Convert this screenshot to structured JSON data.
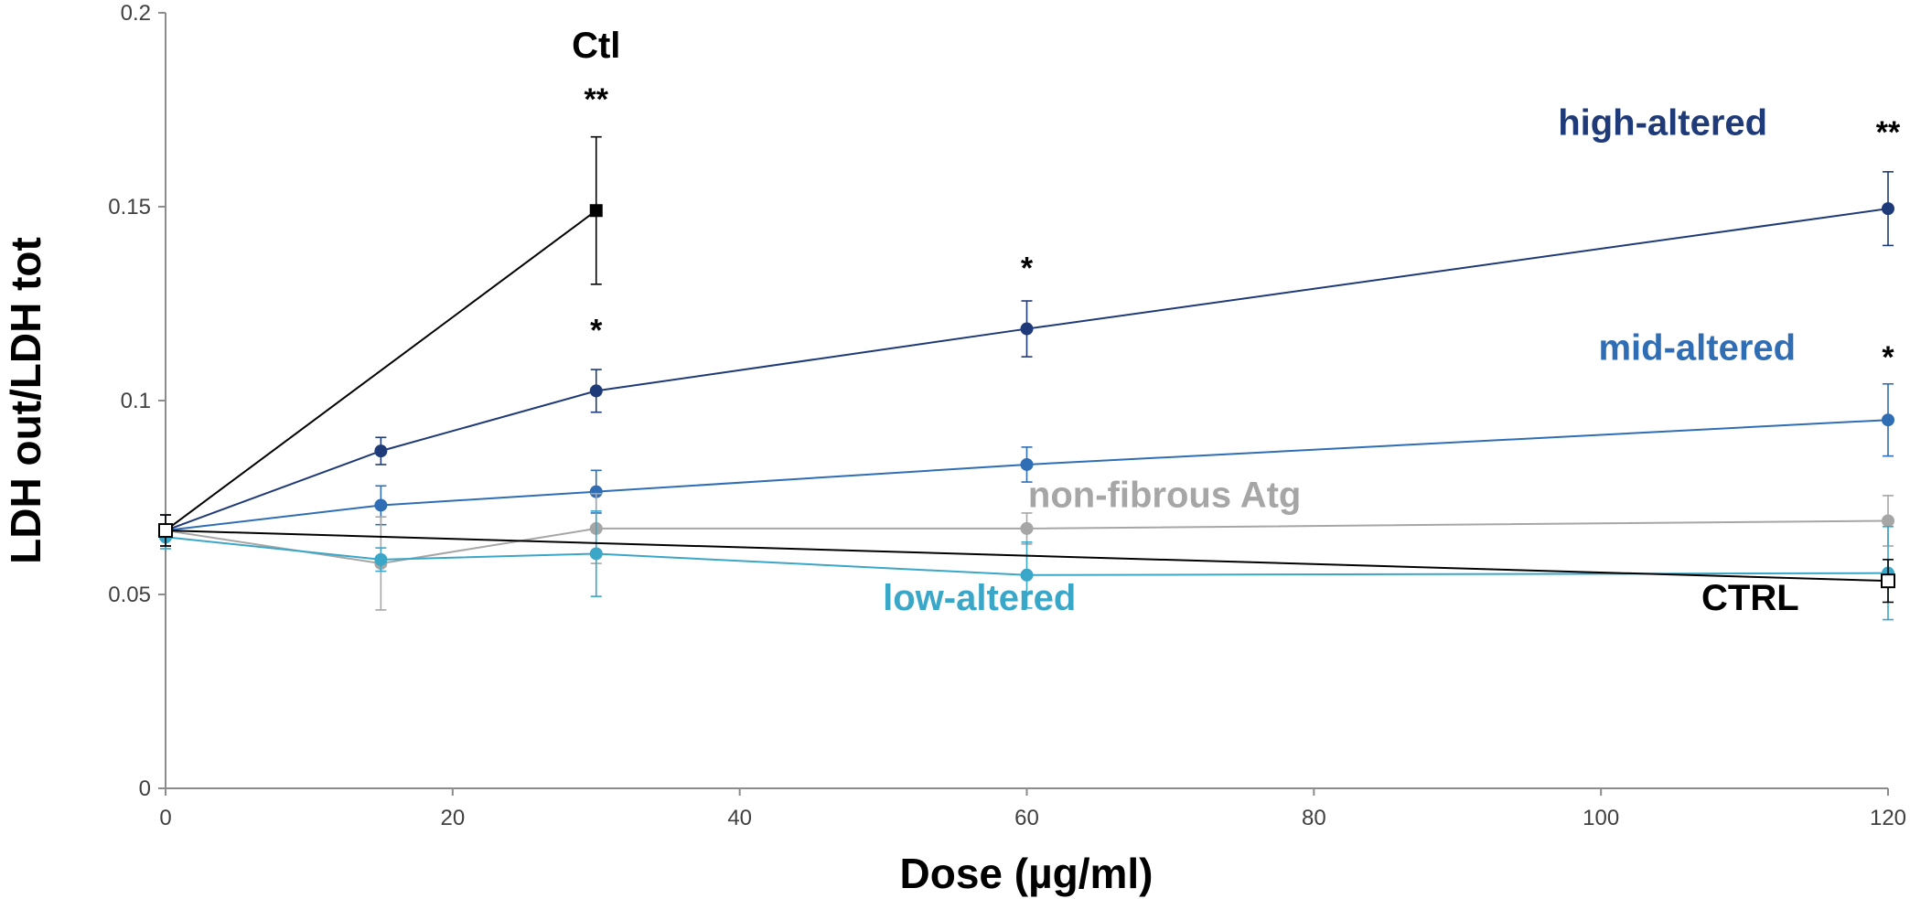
{
  "chart_data": {
    "type": "line",
    "title": "",
    "xlabel": "Dose (µg/ml)",
    "ylabel": "LDH out/LDH tot",
    "xlim": [
      0,
      120
    ],
    "ylim": [
      0,
      0.2
    ],
    "x_ticks": [
      0,
      20,
      40,
      60,
      80,
      100,
      120
    ],
    "x_tick_labels": [
      "0",
      "20",
      "40",
      "60",
      "80",
      "100",
      "120"
    ],
    "y_ticks": [
      0,
      0.05,
      0.1,
      0.15,
      0.2
    ],
    "y_tick_labels": [
      "0",
      "0.05",
      "0.1",
      "0.15",
      "0.2"
    ],
    "grid": false,
    "legend": "none (series labelled directly on plot)",
    "series": [
      {
        "name": "Ctl",
        "color": "#000000",
        "marker": "filled-square",
        "x": [
          0,
          30
        ],
        "y": [
          0.0665,
          0.149
        ],
        "err": [
          0.004,
          0.019
        ]
      },
      {
        "name": "high-altered",
        "color": "#1f3a78",
        "marker": "circle",
        "x": [
          0,
          15,
          30,
          60,
          120
        ],
        "y": [
          0.0665,
          0.087,
          0.1025,
          0.1185,
          0.1495
        ],
        "err": [
          0.004,
          0.0035,
          0.0055,
          0.0072,
          0.0095
        ]
      },
      {
        "name": "mid-altered",
        "color": "#2f6db5",
        "marker": "circle",
        "x": [
          0,
          15,
          30,
          60,
          120
        ],
        "y": [
          0.0665,
          0.073,
          0.0765,
          0.0835,
          0.095
        ],
        "err": [
          0.004,
          0.005,
          0.0055,
          0.0045,
          0.0093
        ]
      },
      {
        "name": "non-fibrous Atg",
        "color": "#a6a6a6",
        "marker": "circle",
        "x": [
          0,
          15,
          30,
          60,
          120
        ],
        "y": [
          0.0665,
          0.058,
          0.067,
          0.067,
          0.069
        ],
        "err": [
          0.004,
          0.012,
          0.009,
          0.004,
          0.0065
        ]
      },
      {
        "name": "low-altered",
        "color": "#3aa6c8",
        "marker": "circle",
        "x": [
          0,
          15,
          30,
          60,
          120
        ],
        "y": [
          0.0648,
          0.059,
          0.0605,
          0.055,
          0.0555
        ],
        "err": [
          0.003,
          0.003,
          0.011,
          0.0085,
          0.012
        ]
      },
      {
        "name": "CTRL",
        "color": "#000000",
        "marker": "open-square",
        "x": [
          0,
          120
        ],
        "y": [
          0.0665,
          0.0535
        ],
        "err": [
          0.004,
          0.0055
        ]
      }
    ],
    "series_labels": [
      {
        "text": "Ctl",
        "color": "#000000",
        "anchor": {
          "x": 30,
          "y": 0.1885
        }
      },
      {
        "text": "high-altered",
        "color": "#1f3a78",
        "anchor": {
          "x": 104.3,
          "y": 0.1685
        }
      },
      {
        "text": "mid-altered",
        "color": "#2f6db5",
        "anchor": {
          "x": 106.7,
          "y": 0.1105
        }
      },
      {
        "text": "non-fibrous Atg",
        "color": "#a6a6a6",
        "anchor": {
          "x": 69.6,
          "y": 0.0725
        }
      },
      {
        "text": "low-altered",
        "color": "#3aa6c8",
        "anchor": {
          "x": 56.7,
          "y": 0.046
        }
      },
      {
        "text": "CTRL",
        "color": "#000000",
        "anchor": {
          "x": 110.4,
          "y": 0.046
        }
      }
    ],
    "annotations": [
      {
        "text": "**",
        "x": 30,
        "y": 0.175
      },
      {
        "text": "*",
        "x": 30,
        "y": 0.1155
      },
      {
        "text": "*",
        "x": 60,
        "y": 0.1315
      },
      {
        "text": "**",
        "x": 120,
        "y": 0.1665
      },
      {
        "text": "*",
        "x": 120,
        "y": 0.1085
      }
    ]
  }
}
